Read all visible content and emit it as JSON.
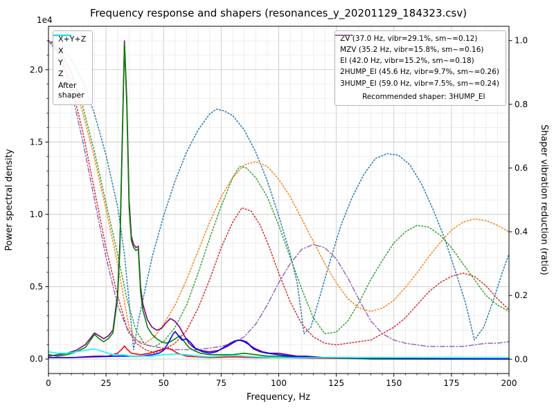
{
  "chart_data": {
    "type": "line",
    "title": "Frequency response and shapers (resonances_y_20201129_184323.csv)",
    "xlabel": "Frequency, Hz",
    "ylabel_left": "Power spectral density",
    "ylabel_right": "Shaper vibration reduction (ratio)",
    "y_offset_text": "1e4",
    "y_left_unit_multiplier": "1e4",
    "axes": {
      "xlim": [
        0,
        200
      ],
      "xticks": [
        0,
        25,
        50,
        75,
        100,
        125,
        150,
        175,
        200
      ],
      "xtick_labels": [
        "0",
        "25",
        "50",
        "75",
        "100",
        "125",
        "150",
        "175",
        "200"
      ],
      "x_minor_step": 5,
      "ylim_left": [
        -0.1,
        2.3
      ],
      "yticks_left": [
        0.0,
        0.5,
        1.0,
        1.5,
        2.0
      ],
      "ytick_labels_left": [
        "0.0",
        "0.5",
        "1.0",
        "1.5",
        "2.0"
      ],
      "y_minor_step_left": 0.1,
      "ylim_right": [
        -0.045,
        1.045
      ],
      "yticks_right": [
        0.0,
        0.2,
        0.4,
        0.6,
        0.8,
        1.0
      ],
      "ytick_labels_right": [
        "0.0",
        "0.2",
        "0.4",
        "0.6",
        "0.8",
        "1.0"
      ],
      "grid": {
        "major_color": "#c3c3c3",
        "minor_color": "#e6e6e6",
        "on": true
      },
      "spine_color": "#000000"
    },
    "psd_series": [
      {
        "name": "X+Y+Z",
        "color": "#800080",
        "style": "solid",
        "x": [
          0,
          4,
          8,
          12,
          16,
          20,
          22,
          24,
          26,
          28,
          30,
          31,
          32,
          33,
          34,
          35,
          36,
          37,
          38,
          39,
          40,
          41,
          43,
          45,
          47,
          49,
          51,
          53,
          55,
          57,
          59,
          61,
          63,
          66,
          70,
          74,
          78,
          80,
          82,
          84,
          86,
          88,
          90,
          93,
          96,
          100,
          104,
          108,
          112,
          120,
          130,
          140,
          160,
          180,
          200
        ],
        "y": [
          0.02,
          0.03,
          0.04,
          0.06,
          0.1,
          0.18,
          0.16,
          0.14,
          0.16,
          0.2,
          0.45,
          0.8,
          1.5,
          2.2,
          1.8,
          1.1,
          0.85,
          0.79,
          0.77,
          0.78,
          0.5,
          0.38,
          0.27,
          0.22,
          0.2,
          0.21,
          0.25,
          0.28,
          0.26,
          0.22,
          0.16,
          0.11,
          0.08,
          0.06,
          0.05,
          0.06,
          0.09,
          0.11,
          0.13,
          0.13,
          0.12,
          0.09,
          0.07,
          0.05,
          0.04,
          0.04,
          0.03,
          0.02,
          0.02,
          0.01,
          0.01,
          0.005,
          0,
          0,
          0
        ]
      },
      {
        "name": "X",
        "color": "#ff0000",
        "style": "solid",
        "x": [
          0,
          10,
          20,
          26,
          30,
          32,
          33,
          34,
          36,
          40,
          44,
          48,
          50,
          52,
          54,
          56,
          60,
          65,
          70,
          80,
          90,
          100,
          120,
          150,
          200
        ],
        "y": [
          0.01,
          0.01,
          0.02,
          0.02,
          0.04,
          0.07,
          0.09,
          0.07,
          0.04,
          0.03,
          0.04,
          0.06,
          0.07,
          0.075,
          0.06,
          0.04,
          0.02,
          0.015,
          0.01,
          0.015,
          0.01,
          0.01,
          0.005,
          0,
          0
        ]
      },
      {
        "name": "Y",
        "color": "#008000",
        "style": "solid",
        "x": [
          0,
          4,
          8,
          12,
          16,
          20,
          22,
          24,
          26,
          28,
          30,
          31,
          32,
          33,
          34,
          35,
          36,
          37,
          38,
          39,
          40,
          41,
          43,
          45,
          47,
          49,
          51,
          53,
          55,
          57,
          59,
          61,
          63,
          66,
          70,
          75,
          80,
          85,
          90,
          95,
          100,
          110,
          120,
          140,
          160,
          180,
          200
        ],
        "y": [
          0.03,
          0.02,
          0.03,
          0.05,
          0.08,
          0.17,
          0.14,
          0.12,
          0.14,
          0.18,
          0.42,
          0.75,
          1.45,
          2.18,
          1.75,
          1.05,
          0.82,
          0.77,
          0.75,
          0.76,
          0.46,
          0.34,
          0.22,
          0.17,
          0.14,
          0.12,
          0.11,
          0.12,
          0.14,
          0.16,
          0.12,
          0.08,
          0.06,
          0.04,
          0.03,
          0.03,
          0.03,
          0.04,
          0.03,
          0.02,
          0.02,
          0.01,
          0.01,
          0,
          0,
          0,
          0
        ]
      },
      {
        "name": "Z",
        "color": "#0000ff",
        "style": "solid",
        "x": [
          0,
          10,
          20,
          30,
          40,
          45,
          48,
          50,
          52,
          54,
          55,
          56,
          58,
          60,
          62,
          64,
          67,
          70,
          73,
          76,
          79,
          81,
          83,
          85,
          87,
          89,
          92,
          95,
          100,
          105,
          110,
          120,
          140,
          200
        ],
        "y": [
          0.01,
          0.01,
          0.015,
          0.02,
          0.02,
          0.03,
          0.04,
          0.06,
          0.11,
          0.17,
          0.19,
          0.17,
          0.13,
          0.14,
          0.11,
          0.07,
          0.05,
          0.04,
          0.05,
          0.08,
          0.11,
          0.125,
          0.13,
          0.12,
          0.1,
          0.07,
          0.05,
          0.04,
          0.03,
          0.02,
          0.015,
          0.01,
          0.005,
          0
        ]
      },
      {
        "name": "After shaper",
        "color": "#00ffff",
        "style": "solid",
        "x": [
          0,
          4,
          8,
          12,
          16,
          20,
          24,
          28,
          32,
          36,
          40,
          45,
          50,
          55,
          60,
          65,
          70,
          75,
          80,
          85,
          90,
          100,
          110,
          120,
          140,
          160,
          180,
          200
        ],
        "y": [
          0.05,
          0.04,
          0.04,
          0.05,
          0.06,
          0.07,
          0.05,
          0.03,
          0.03,
          0.02,
          0.02,
          0.02,
          0.03,
          0.035,
          0.03,
          0.02,
          0.015,
          0.02,
          0.025,
          0.02,
          0.015,
          0.01,
          0.01,
          0.01,
          0.01,
          0.01,
          0.01,
          0.01
        ]
      }
    ],
    "shaper_series": [
      {
        "name": "ZV",
        "color": "#1f77b4",
        "style": "dotted",
        "x": [
          0,
          5,
          10,
          15,
          20,
          25,
          30,
          33,
          35,
          37,
          39,
          42,
          45,
          50,
          55,
          60,
          65,
          70,
          73,
          76,
          80,
          85,
          90,
          95,
          100,
          105,
          108,
          111,
          114,
          118,
          122,
          127,
          132,
          137,
          142,
          147,
          152,
          157,
          162,
          167,
          172,
          177,
          181,
          185,
          189,
          193,
          197,
          200
        ],
        "y": [
          1.0,
          0.985,
          0.94,
          0.87,
          0.77,
          0.64,
          0.48,
          0.33,
          0.18,
          0.03,
          0.12,
          0.22,
          0.32,
          0.45,
          0.56,
          0.65,
          0.72,
          0.77,
          0.785,
          0.78,
          0.765,
          0.72,
          0.65,
          0.56,
          0.45,
          0.33,
          0.24,
          0.08,
          0.1,
          0.2,
          0.3,
          0.42,
          0.51,
          0.58,
          0.63,
          0.645,
          0.64,
          0.61,
          0.55,
          0.47,
          0.38,
          0.27,
          0.18,
          0.06,
          0.1,
          0.18,
          0.27,
          0.33
        ]
      },
      {
        "name": "MZV",
        "color": "#ff7f0e",
        "style": "dotted",
        "x": [
          0,
          5,
          10,
          15,
          20,
          25,
          30,
          33,
          35,
          38,
          42,
          46,
          50,
          55,
          60,
          65,
          70,
          75,
          80,
          85,
          90,
          95,
          100,
          105,
          110,
          115,
          120,
          125,
          130,
          135,
          140,
          145,
          150,
          155,
          160,
          165,
          170,
          175,
          180,
          185,
          190,
          195,
          200
        ],
        "y": [
          1.0,
          0.97,
          0.89,
          0.77,
          0.63,
          0.47,
          0.3,
          0.18,
          0.1,
          0.06,
          0.05,
          0.07,
          0.11,
          0.17,
          0.25,
          0.34,
          0.43,
          0.51,
          0.57,
          0.61,
          0.62,
          0.605,
          0.565,
          0.51,
          0.44,
          0.37,
          0.3,
          0.24,
          0.19,
          0.16,
          0.15,
          0.16,
          0.185,
          0.225,
          0.27,
          0.32,
          0.365,
          0.405,
          0.43,
          0.44,
          0.435,
          0.42,
          0.4
        ]
      },
      {
        "name": "EI",
        "color": "#2ca02c",
        "style": "dotted",
        "x": [
          0,
          5,
          10,
          15,
          20,
          25,
          30,
          34,
          38,
          42,
          46,
          50,
          55,
          60,
          65,
          70,
          75,
          80,
          83,
          86,
          90,
          95,
          100,
          105,
          110,
          115,
          120,
          125,
          130,
          135,
          140,
          145,
          150,
          155,
          160,
          165,
          170,
          175,
          180,
          185,
          190,
          195,
          200
        ],
        "y": [
          1.0,
          0.975,
          0.9,
          0.79,
          0.65,
          0.49,
          0.33,
          0.19,
          0.09,
          0.045,
          0.04,
          0.055,
          0.1,
          0.17,
          0.27,
          0.38,
          0.48,
          0.57,
          0.605,
          0.6,
          0.57,
          0.51,
          0.42,
          0.32,
          0.22,
          0.13,
          0.08,
          0.085,
          0.12,
          0.18,
          0.25,
          0.31,
          0.365,
          0.4,
          0.42,
          0.415,
          0.39,
          0.35,
          0.3,
          0.25,
          0.2,
          0.17,
          0.15
        ]
      },
      {
        "name": "2HUMP_EI",
        "color": "#d62728",
        "style": "dotted",
        "x": [
          0,
          5,
          10,
          15,
          20,
          25,
          30,
          34,
          38,
          42,
          46,
          50,
          55,
          60,
          65,
          70,
          75,
          80,
          84,
          88,
          92,
          96,
          100,
          105,
          110,
          115,
          120,
          125,
          130,
          135,
          140,
          145,
          150,
          155,
          160,
          165,
          170,
          175,
          180,
          185,
          190,
          195,
          200
        ],
        "y": [
          1.0,
          0.96,
          0.86,
          0.71,
          0.53,
          0.35,
          0.2,
          0.1,
          0.05,
          0.03,
          0.02,
          0.03,
          0.05,
          0.09,
          0.16,
          0.25,
          0.35,
          0.43,
          0.475,
          0.465,
          0.42,
          0.35,
          0.27,
          0.18,
          0.11,
          0.07,
          0.05,
          0.045,
          0.05,
          0.055,
          0.06,
          0.08,
          0.1,
          0.13,
          0.17,
          0.21,
          0.24,
          0.26,
          0.27,
          0.26,
          0.23,
          0.19,
          0.155
        ]
      },
      {
        "name": "3HUMP_EI",
        "color": "#9467bd",
        "style": "dashdot",
        "x": [
          0,
          5,
          10,
          15,
          20,
          25,
          30,
          35,
          40,
          45,
          50,
          55,
          60,
          65,
          70,
          75,
          80,
          85,
          90,
          95,
          100,
          105,
          110,
          115,
          120,
          125,
          130,
          135,
          140,
          145,
          150,
          155,
          160,
          165,
          170,
          175,
          180,
          185,
          190,
          195,
          200
        ],
        "y": [
          1.0,
          0.95,
          0.84,
          0.68,
          0.5,
          0.32,
          0.17,
          0.08,
          0.05,
          0.04,
          0.035,
          0.03,
          0.03,
          0.03,
          0.035,
          0.04,
          0.05,
          0.07,
          0.11,
          0.17,
          0.24,
          0.3,
          0.345,
          0.36,
          0.35,
          0.315,
          0.255,
          0.185,
          0.12,
          0.08,
          0.06,
          0.05,
          0.045,
          0.04,
          0.04,
          0.04,
          0.04,
          0.045,
          0.05,
          0.05,
          0.055
        ]
      }
    ],
    "legend_psd": [
      {
        "label": "X+Y+Z",
        "color": "#800080",
        "style": "solid"
      },
      {
        "label": "X",
        "color": "#ff0000",
        "style": "solid"
      },
      {
        "label": "Y",
        "color": "#008000",
        "style": "solid"
      },
      {
        "label": "Z",
        "color": "#0000ff",
        "style": "solid"
      },
      {
        "label": "After\nshaper",
        "color": "#00ffff",
        "style": "solid"
      }
    ],
    "legend_shapers": {
      "items": [
        {
          "label": "ZV (37.0 Hz, vibr=29.1%, sm~=0.12)",
          "color": "#1f77b4",
          "style": "dotted"
        },
        {
          "label": "MZV (35.2 Hz, vibr=15.8%, sm~=0.16)",
          "color": "#ff7f0e",
          "style": "dotted"
        },
        {
          "label": "EI (42.0 Hz, vibr=15.2%, sm~=0.18)",
          "color": "#2ca02c",
          "style": "dotted"
        },
        {
          "label": "2HUMP_EI (45.6 Hz, vibr=9.7%, sm~=0.26)",
          "color": "#d62728",
          "style": "dotted"
        },
        {
          "label": "3HUMP_EI (59.0 Hz, vibr=7.5%, sm~=0.24)",
          "color": "#9467bd",
          "style": "dashdot"
        }
      ],
      "note": "Recommended shaper: 3HUMP_EI"
    }
  }
}
